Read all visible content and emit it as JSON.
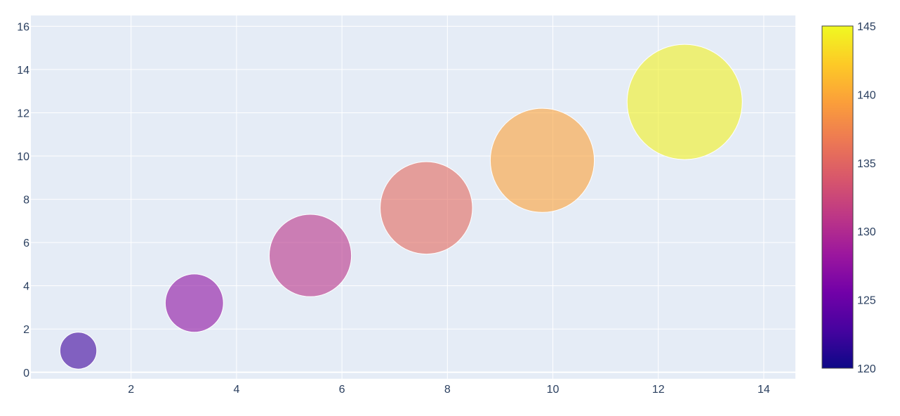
{
  "chart_data": {
    "type": "scatter",
    "subtype": "bubble",
    "title": "",
    "xlabel": "",
    "ylabel": "",
    "xlim": [
      0.1,
      14.6
    ],
    "ylim": [
      -0.3,
      16.5
    ],
    "x_ticks": [
      2,
      4,
      6,
      8,
      10,
      12,
      14
    ],
    "y_ticks": [
      0,
      2,
      4,
      6,
      8,
      10,
      12,
      14,
      16
    ],
    "grid": true,
    "plot_background": "#e5ecf6",
    "points": [
      {
        "x": 1.0,
        "y": 1.0,
        "size": 1.0,
        "color_value": 122.4
      },
      {
        "x": 3.2,
        "y": 3.2,
        "size": 2.5,
        "color_value": 127.4
      },
      {
        "x": 5.4,
        "y": 5.4,
        "size": 5.0,
        "color_value": 130.8
      },
      {
        "x": 7.6,
        "y": 7.6,
        "size": 6.3,
        "color_value": 135.4
      },
      {
        "x": 9.8,
        "y": 9.8,
        "size": 8.0,
        "color_value": 139.6
      },
      {
        "x": 12.5,
        "y": 12.5,
        "size": 9.8,
        "color_value": 144.6
      }
    ],
    "marker_opacity": 0.6,
    "colorbar": {
      "range": [
        120,
        145
      ],
      "ticks": [
        120,
        125,
        130,
        135,
        140,
        145
      ],
      "colorscale": "plasma",
      "stops": [
        "#0d0887",
        "#46039f",
        "#7201a8",
        "#9c179e",
        "#bd3786",
        "#d8576b",
        "#ed7953",
        "#fb9f3a",
        "#fdca26",
        "#f0f921"
      ]
    }
  }
}
